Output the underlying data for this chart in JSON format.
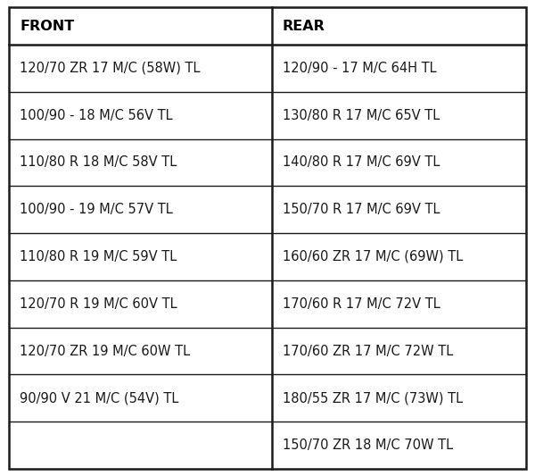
{
  "front_header": "FRONT",
  "rear_header": "REAR",
  "front_items": [
    "120/70 ZR 17 M/C (58W) TL",
    "100/90 - 18 M/C 56V TL",
    "110/80 R 18 M/C 58V TL",
    "100/90 - 19 M/C 57V TL",
    "110/80 R 19 M/C 59V TL",
    "120/70 R 19 M/C 60V TL",
    "120/70 ZR 19 M/C 60W TL",
    "90/90 V 21 M/C (54V) TL"
  ],
  "rear_items": [
    "120/90 - 17 M/C 64H TL",
    "130/80 R 17 M/C 65V TL",
    "140/80 R 17 M/C 69V TL",
    "150/70 R 17 M/C 69V TL",
    "160/60 ZR 17 M/C (69W) TL",
    "170/60 R 17 M/C 72V TL",
    "170/60 ZR 17 M/C 72W TL",
    "180/55 ZR 17 M/C (73W) TL",
    "150/70 ZR 18 M/C 70W TL"
  ],
  "background_color": "#ffffff",
  "border_color": "#1a1a1a",
  "text_color": "#1a1a1a",
  "header_text_color": "#000000",
  "font_size": 10.5,
  "header_font_size": 11.5,
  "fig_width": 6.0,
  "fig_height": 5.33,
  "dpi": 100
}
